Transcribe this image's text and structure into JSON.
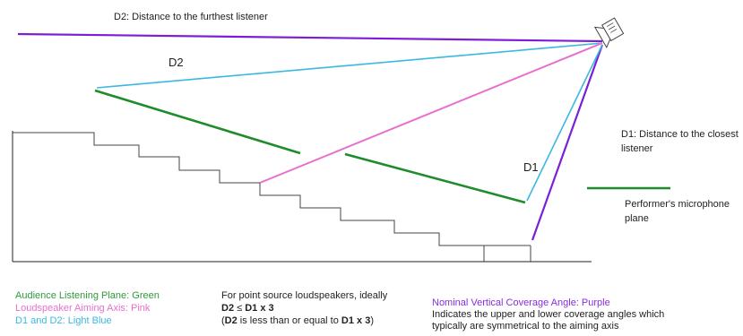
{
  "labels": {
    "d2_far": "D2: Distance to the furthest listener",
    "d2": "D2",
    "d1": "D1",
    "d1_close_line1": "D1: Distance to the closest",
    "d1_close_line2": "listener",
    "mic_line1": "Performer's microphone",
    "mic_line2": "plane"
  },
  "legend": {
    "green": "Audience Listening Plane: Green",
    "pink": "Loudspeaker Aiming Axis: Pink",
    "blue": "D1 and D2: Light Blue",
    "purple": "Nominal Vertical Coverage Angle: Purple",
    "purple_desc_1": "Indicates the upper and lower coverage angles which",
    "purple_desc_2": "typically are symmetrical to the aiming axis"
  },
  "formula": {
    "line1": "For point source loudspeakers, ideally",
    "line2_a": "D2",
    "line2_op": " ≤ ",
    "line2_b": "D1 x 3",
    "line3_open": "(",
    "line3_a": "D2",
    "line3_mid": " is less than or equal to ",
    "line3_b": "D1 x 3",
    "line3_close": ")"
  },
  "colors": {
    "green": "#1f8c2b",
    "pink": "#e86fd0",
    "blue": "#3cb8e0",
    "purple": "#7b1fd6",
    "stairs": "#444444"
  },
  "icons": {
    "speaker": "loudspeaker-icon"
  }
}
